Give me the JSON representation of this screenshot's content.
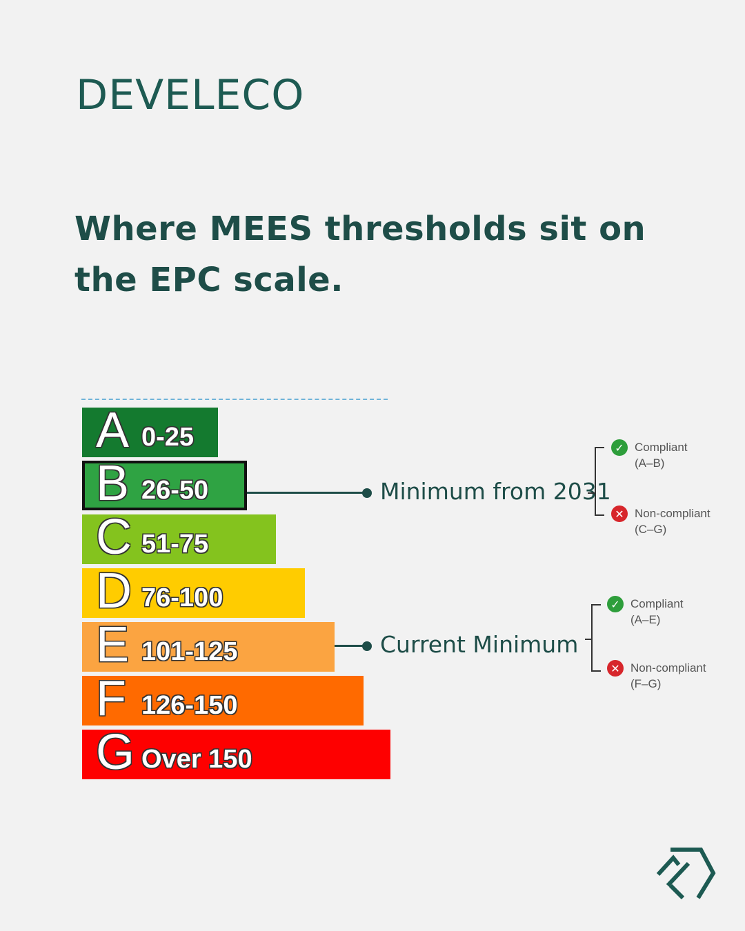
{
  "brand": {
    "name": "DEVELECO"
  },
  "headline": "Where MEES thresholds sit on the EPC scale.",
  "bands": [
    {
      "letter": "A",
      "range": "0-25",
      "color": "#147a2f"
    },
    {
      "letter": "B",
      "range": "26-50",
      "color": "#2fa343"
    },
    {
      "letter": "C",
      "range": "51-75",
      "color": "#84c31e"
    },
    {
      "letter": "D",
      "range": "76-100",
      "color": "#ffcc00"
    },
    {
      "letter": "E",
      "range": "101-125",
      "color": "#fba441"
    },
    {
      "letter": "F",
      "range": "126-150",
      "color": "#ff6a00"
    },
    {
      "letter": "G",
      "range": "Over 150",
      "color": "#fe0000"
    }
  ],
  "callouts": [
    {
      "label": "Minimum from 2031",
      "band": "B",
      "compliant": {
        "title": "Compliant",
        "range": "(A–B)"
      },
      "noncompliant": {
        "title": "Non-compliant",
        "range": "(C–G)"
      }
    },
    {
      "label": "Current Minimum",
      "band": "E",
      "compliant": {
        "title": "Compliant",
        "range": "(A–E)"
      },
      "noncompliant": {
        "title": "Non-compliant",
        "range": "(F–G)"
      }
    }
  ]
}
